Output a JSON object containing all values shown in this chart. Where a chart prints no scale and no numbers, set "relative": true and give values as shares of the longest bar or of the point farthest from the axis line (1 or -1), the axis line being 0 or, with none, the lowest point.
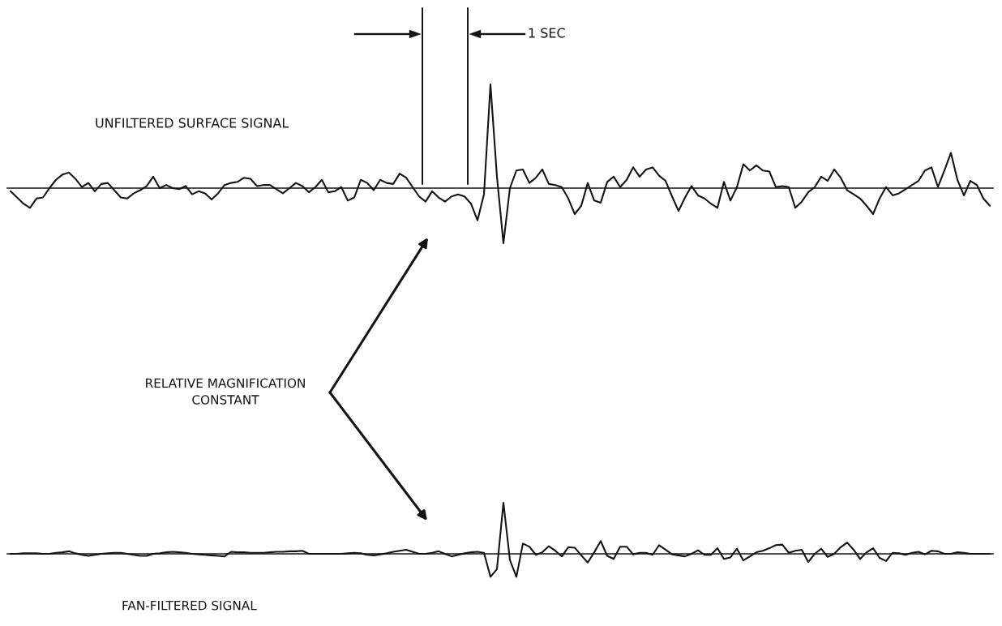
{
  "chart_data": [
    {
      "type": "line",
      "relative": true,
      "categories": [
        null,
        null,
        null,
        null,
        null,
        null,
        null,
        null,
        null,
        null,
        null,
        null,
        null,
        null,
        null,
        null,
        null,
        null,
        null,
        null,
        null,
        null,
        null,
        null,
        null,
        null,
        null,
        null,
        null,
        null,
        null,
        null,
        null,
        null,
        null,
        null,
        null,
        null,
        null,
        null,
        null,
        null,
        null,
        null,
        null,
        null,
        null,
        null,
        null,
        null,
        null,
        null,
        null,
        null,
        null,
        null,
        null,
        null,
        null,
        null,
        null,
        null,
        null,
        null,
        null,
        null,
        null,
        null,
        null,
        null,
        null,
        null,
        null,
        null,
        null,
        null,
        null,
        null,
        null,
        null,
        null,
        null,
        null,
        null,
        null,
        null,
        null,
        null,
        null,
        null,
        null,
        null,
        null,
        null,
        null,
        null,
        null,
        null,
        null,
        null,
        null,
        null,
        null,
        null,
        null,
        null,
        null,
        null,
        null,
        null,
        null,
        null,
        null,
        null,
        null,
        null,
        null,
        null,
        null,
        null,
        null,
        null,
        null,
        null,
        null,
        null,
        null,
        null,
        null,
        null,
        null,
        null,
        null,
        null,
        null,
        null,
        null,
        null,
        null,
        null,
        null,
        null,
        null,
        null,
        null,
        null,
        null,
        null,
        null,
        null,
        null,
        null
      ],
      "series": [
        {
          "name": "UNFILTERED SURFACE SIGNAL",
          "color": "#141414",
          "values": [
            -0.03,
            -0.09,
            -0.15,
            -0.19,
            -0.1,
            -0.09,
            0.0,
            0.08,
            0.13,
            0.15,
            0.09,
            0.01,
            0.05,
            -0.03,
            0.04,
            0.05,
            -0.02,
            -0.09,
            -0.1,
            -0.05,
            -0.02,
            0.02,
            0.11,
            0.0,
            0.03,
            0.0,
            -0.01,
            0.02,
            -0.06,
            -0.03,
            -0.05,
            -0.11,
            -0.05,
            0.03,
            0.05,
            0.06,
            0.1,
            0.09,
            0.02,
            0.03,
            0.03,
            -0.01,
            -0.05,
            0.0,
            0.05,
            0.02,
            -0.04,
            0.01,
            0.08,
            -0.04,
            -0.03,
            0.01,
            -0.12,
            -0.09,
            0.08,
            0.05,
            -0.02,
            0.08,
            0.05,
            0.04,
            0.14,
            0.1,
            0.01,
            -0.08,
            -0.13,
            -0.03,
            -0.09,
            -0.13,
            -0.08,
            -0.06,
            -0.08,
            -0.15,
            -0.31,
            -0.06,
            1.0,
            0.11,
            -0.53,
            0.0,
            0.17,
            0.18,
            0.05,
            0.1,
            0.18,
            0.04,
            0.03,
            0.01,
            -0.1,
            -0.25,
            -0.17,
            0.05,
            -0.12,
            -0.14,
            0.06,
            0.11,
            0.01,
            0.08,
            0.2,
            0.11,
            0.18,
            0.2,
            0.12,
            0.07,
            -0.08,
            -0.22,
            -0.09,
            0.02,
            -0.07,
            -0.1,
            -0.15,
            -0.19,
            0.06,
            -0.12,
            0.01,
            0.23,
            0.17,
            0.22,
            0.17,
            0.16,
            0.01,
            0.02,
            0.01,
            -0.19,
            -0.13,
            -0.04,
            0.01,
            0.11,
            0.07,
            0.18,
            0.1,
            -0.02,
            -0.06,
            -0.1,
            -0.17,
            -0.25,
            -0.1,
            0.01,
            -0.07,
            -0.05,
            -0.01,
            0.03,
            0.07,
            0.17,
            0.2,
            0.01,
            0.17,
            0.34,
            0.08,
            -0.07,
            0.07,
            0.03,
            -0.1,
            -0.17
          ]
        }
      ],
      "annotations": [
        "1 SEC",
        "RELATIVE MAGNIFICATION\nCONSTANT"
      ]
    },
    {
      "type": "line",
      "relative": true,
      "categories": [
        null,
        null,
        null,
        null,
        null,
        null,
        null,
        null,
        null,
        null,
        null,
        null,
        null,
        null,
        null,
        null,
        null,
        null,
        null,
        null,
        null,
        null,
        null,
        null,
        null,
        null,
        null,
        null,
        null,
        null,
        null,
        null,
        null,
        null,
        null,
        null,
        null,
        null,
        null,
        null,
        null,
        null,
        null,
        null,
        null,
        null,
        null,
        null,
        null,
        null,
        null,
        null,
        null,
        null,
        null,
        null,
        null,
        null,
        null,
        null,
        null,
        null,
        null,
        null,
        null,
        null,
        null,
        null,
        null,
        null,
        null,
        null,
        null,
        null,
        null,
        null,
        null,
        null,
        null,
        null,
        null,
        null,
        null,
        null,
        null,
        null,
        null,
        null,
        null,
        null,
        null,
        null,
        null,
        null,
        null,
        null,
        null,
        null,
        null,
        null,
        null,
        null,
        null,
        null,
        null,
        null,
        null,
        null,
        null,
        null,
        null,
        null,
        null,
        null,
        null,
        null,
        null,
        null,
        null,
        null,
        null,
        null,
        null,
        null,
        null,
        null,
        null,
        null,
        null,
        null,
        null,
        null,
        null,
        null,
        null,
        null,
        null,
        null,
        null,
        null,
        null,
        null,
        null,
        null,
        null,
        null,
        null,
        null,
        null,
        null,
        null,
        null
      ],
      "series": [
        {
          "name": "FAN-FILTERED SIGNAL",
          "color": "#141414",
          "values": [
            0.0,
            0.0,
            0.01,
            0.01,
            0.01,
            0.0,
            0.0,
            0.02,
            0.03,
            0.05,
            0.01,
            -0.02,
            -0.04,
            -0.02,
            0.0,
            0.01,
            0.02,
            0.02,
            0.0,
            -0.02,
            -0.04,
            -0.04,
            0.0,
            0.01,
            0.03,
            0.04,
            0.03,
            0.02,
            0.0,
            -0.01,
            -0.02,
            -0.03,
            -0.04,
            -0.05,
            0.04,
            0.03,
            0.03,
            0.02,
            0.02,
            0.02,
            0.03,
            0.04,
            0.04,
            0.05,
            0.05,
            0.06,
            0.0,
            0.0,
            0.0,
            0.0,
            0.0,
            0.0,
            0.01,
            0.02,
            0.01,
            -0.02,
            -0.03,
            -0.01,
            0.01,
            0.04,
            0.06,
            0.08,
            0.04,
            0.0,
            0.0,
            0.02,
            0.05,
            0.0,
            -0.05,
            -0.02,
            0.01,
            0.03,
            0.04,
            0.02,
            -0.45,
            -0.3,
            1.0,
            -0.12,
            -0.45,
            0.2,
            0.14,
            -0.02,
            0.03,
            0.15,
            0.06,
            -0.05,
            0.13,
            0.12,
            -0.03,
            -0.17,
            0.03,
            0.25,
            -0.04,
            -0.1,
            0.14,
            0.14,
            -0.01,
            0.02,
            0.02,
            -0.02,
            0.17,
            0.08,
            -0.01,
            -0.03,
            -0.05,
            0.0,
            0.07,
            -0.02,
            -0.02,
            0.11,
            -0.1,
            -0.07,
            0.1,
            -0.13,
            -0.05,
            0.03,
            0.06,
            0.11,
            0.17,
            0.18,
            0.02,
            0.06,
            0.08,
            -0.16,
            0.0,
            0.1,
            -0.06,
            0.0,
            0.13,
            0.22,
            0.08,
            -0.1,
            0.03,
            0.11,
            -0.08,
            -0.14,
            0.02,
            0.01,
            -0.02,
            0.02,
            0.04,
            -0.01,
            0.06,
            0.05,
            0.0,
            0.0,
            0.03,
            0.02,
            0.0,
            0.0,
            0.0,
            0.0
          ]
        }
      ]
    }
  ]
}
